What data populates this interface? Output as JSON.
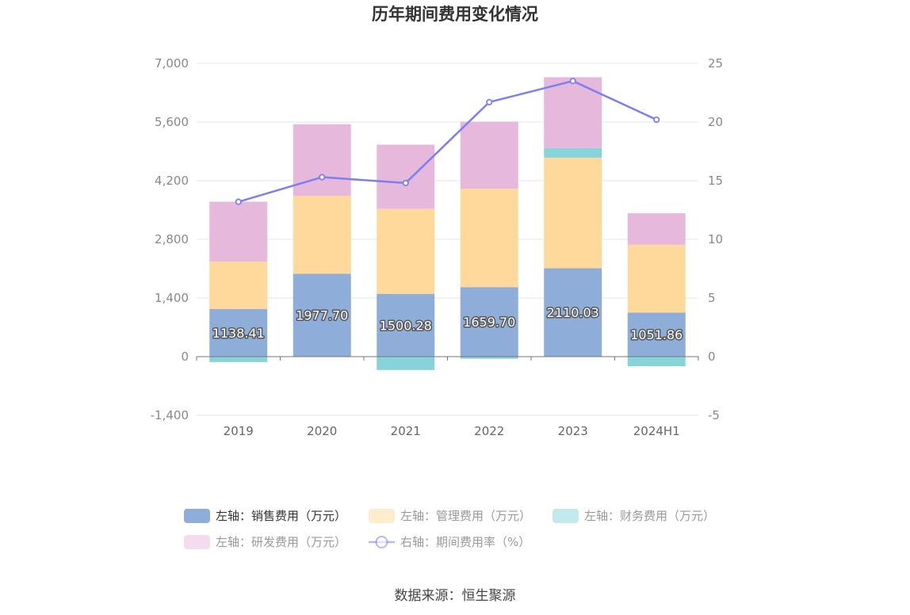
{
  "chart_data": {
    "type": "bar",
    "title": "历年期间费用变化情况",
    "categories": [
      "2019",
      "2020",
      "2021",
      "2022",
      "2023",
      "2024H1"
    ],
    "stacked": true,
    "left_axis": {
      "min": -1400,
      "max": 7000,
      "ticks": [
        "-1,400",
        "0",
        "1,400",
        "2,800",
        "4,200",
        "5,600",
        "7,000"
      ]
    },
    "right_axis": {
      "min": -5,
      "max": 25,
      "ticks": [
        "-5",
        "0",
        "5",
        "10",
        "15",
        "20",
        "25"
      ]
    },
    "grid": true,
    "series": [
      {
        "name": "左轴：销售费用（万元）",
        "axis": "left",
        "kind": "bar",
        "color": "#8eadd9",
        "values": [
          1138.41,
          1977.7,
          1500.28,
          1659.7,
          2110.03,
          1051.86
        ],
        "labels": [
          "1138.41",
          "1977.70",
          "1500.28",
          "1659.70",
          "2110.03",
          "1051.86"
        ]
      },
      {
        "name": "左轴：管理费用（万元）",
        "axis": "left",
        "kind": "bar",
        "color": "#fed99b",
        "values": [
          1130,
          1860,
          2030,
          2350,
          2640,
          1620
        ]
      },
      {
        "name": "左轴：财务费用（万元）",
        "axis": "left",
        "kind": "bar",
        "color": "#86d4d9",
        "values": [
          -130,
          0,
          -320,
          -50,
          230,
          -230
        ]
      },
      {
        "name": "左轴：研发费用（万元）",
        "axis": "left",
        "kind": "bar",
        "color": "#e6b9dc",
        "values": [
          1430,
          1710,
          1530,
          1600,
          1690,
          750
        ]
      },
      {
        "name": "右轴：期间费用率（%）",
        "axis": "right",
        "kind": "line",
        "color": "#7b7fef",
        "values": [
          13.2,
          15.3,
          14.8,
          21.7,
          23.5,
          20.2
        ]
      }
    ],
    "legend_position": "bottom",
    "legend_muted": [
      false,
      true,
      true,
      true,
      true
    ]
  },
  "source": "数据来源：恒生聚源"
}
